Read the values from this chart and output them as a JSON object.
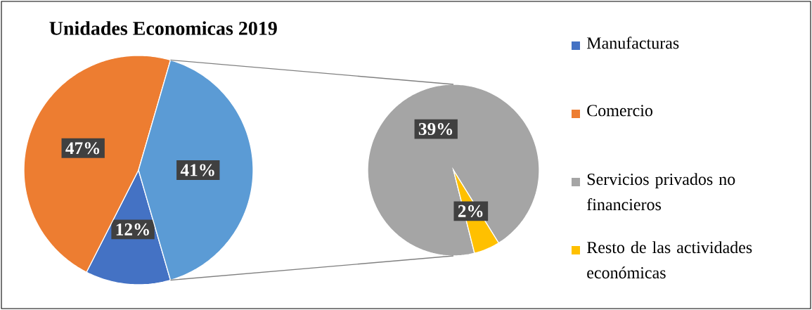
{
  "chart_data": [
    {
      "type": "pie",
      "title": "Unidades Economicas 2019",
      "categories": [
        "Manufacturas",
        "Comercio",
        null
      ],
      "values": [
        12,
        47,
        41
      ],
      "value_labels": [
        "12%",
        "47%",
        "41%"
      ],
      "colors": [
        "#4472c4",
        "#ed7d31",
        "#5b9bd5"
      ],
      "legend": "right"
    },
    {
      "type": "pie",
      "categories": [
        "Servicios privados no financieros",
        "Resto de las actividades económicas"
      ],
      "values": [
        39,
        2
      ],
      "value_labels": [
        "39%",
        "2%"
      ],
      "colors": [
        "#a5a5a5",
        "#ffc000"
      ],
      "legend": "right"
    }
  ]
}
